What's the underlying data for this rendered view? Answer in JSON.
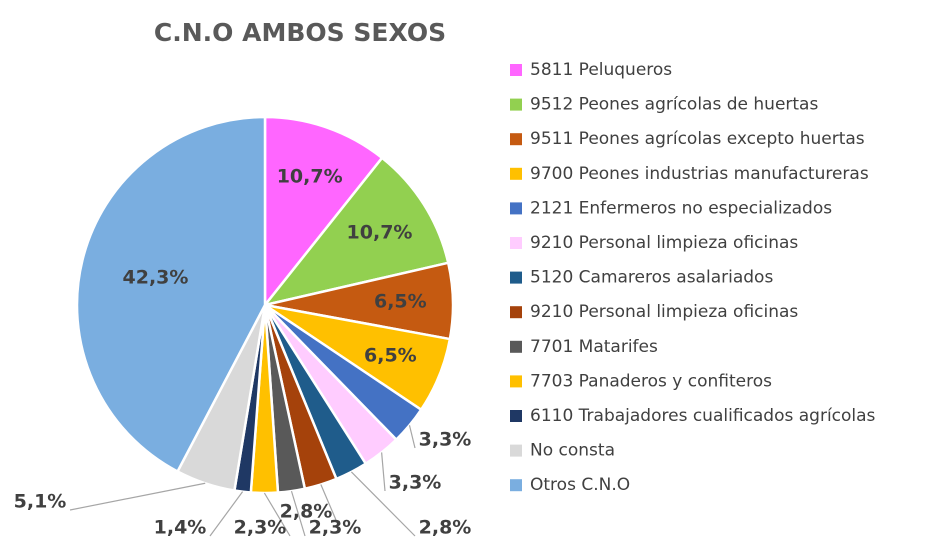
{
  "chart_data": {
    "type": "pie",
    "title": "C.N.O AMBOS SEXOS",
    "categories": [
      "5811 Peluqueros",
      "9512 Peones agrícolas de huertas",
      "9511 Peones agrícolas excepto huertas",
      "9700 Peones industrias manufactureras",
      "2121 Enfermeros no especializados",
      "9210 Personal limpieza oficinas",
      "5120 Camareros asalariados",
      "9210 Personal limpieza oficinas",
      "7701 Matarifes",
      "7703 Panaderos y confiteros",
      "6110 Trabajadores cualificados agrícolas",
      "No consta",
      "Otros C.N.O"
    ],
    "values": [
      10.7,
      10.7,
      6.5,
      6.5,
      3.3,
      3.3,
      2.8,
      2.8,
      2.3,
      2.3,
      1.4,
      5.1,
      42.3
    ],
    "value_labels": [
      "10,7%",
      "10,7%",
      "6,5%",
      "6,5%",
      "3,3%",
      "3,3%",
      "2,8%",
      "2,8%",
      "2,3%",
      "2,3%",
      "1,4%",
      "5,1%",
      "42,3%"
    ],
    "colors": [
      "#ff66ff",
      "#92d050",
      "#c55a11",
      "#ffc000",
      "#4472c4",
      "#ffccff",
      "#1f5c8b",
      "#a5420b",
      "#595959",
      "#ffc000",
      "#1f3864",
      "#d9d9d9",
      "#7aaee0"
    ],
    "legend": "right"
  }
}
